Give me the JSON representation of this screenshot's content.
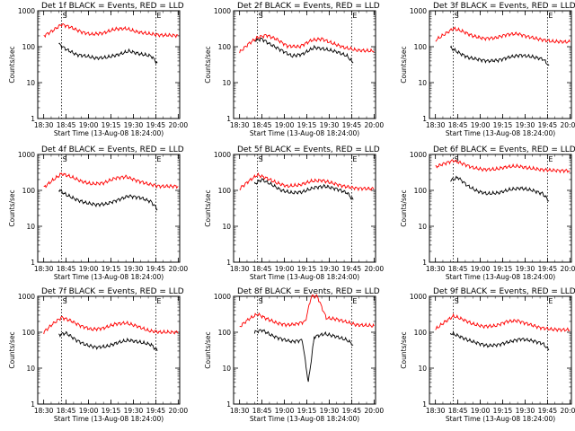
{
  "chart_data": {
    "type": "line",
    "y_scale": "log",
    "ylim": [
      1,
      1000
    ],
    "y_ticks": [
      "1",
      "10",
      "100",
      "1000"
    ],
    "ylabel": "Counts/sec",
    "x_ticks": [
      "18:30",
      "18:45",
      "19:00",
      "19:15",
      "19:30",
      "19:45",
      "20:00"
    ],
    "xlabel": "Start Time (13-Aug-08 18:24:00)",
    "marker_labels": [
      "S",
      "E"
    ],
    "panels": [
      {
        "title": "Det 1f BLACK = Events, RED = LLD",
        "series": [
          {
            "color": "#000000",
            "x": [
              "18:40",
              "18:45",
              "18:52",
              "18:58",
              "19:05",
              "19:12",
              "19:20",
              "19:27",
              "19:35",
              "19:42",
              "19:46"
            ],
            "y": [
              120,
              85,
              60,
              55,
              48,
              50,
              60,
              75,
              62,
              55,
              35
            ]
          },
          {
            "color": "#ff0000",
            "x": [
              "18:30",
              "18:36",
              "18:42",
              "18:48",
              "18:55",
              "19:02",
              "19:10",
              "19:18",
              "19:25",
              "19:32",
              "19:40",
              "19:48",
              "20:00"
            ],
            "y": [
              200,
              280,
              420,
              350,
              260,
              220,
              240,
              310,
              320,
              260,
              230,
              210,
              205
            ]
          }
        ]
      },
      {
        "title": "Det 2f BLACK = Events, RED = LLD",
        "series": [
          {
            "color": "#000000",
            "x": [
              "18:40",
              "18:45",
              "18:50",
              "18:58",
              "19:05",
              "19:12",
              "19:20",
              "19:27",
              "19:35",
              "19:42",
              "19:46"
            ],
            "y": [
              150,
              165,
              120,
              80,
              55,
              62,
              95,
              85,
              72,
              55,
              35
            ]
          },
          {
            "color": "#ff0000",
            "x": [
              "18:30",
              "18:36",
              "18:42",
              "18:48",
              "18:55",
              "19:02",
              "19:10",
              "19:18",
              "19:25",
              "19:32",
              "19:40",
              "19:48",
              "20:00"
            ],
            "y": [
              70,
              120,
              180,
              210,
              160,
              105,
              100,
              150,
              165,
              125,
              95,
              80,
              75
            ]
          }
        ]
      },
      {
        "title": "Det 3f BLACK = Events, RED = LLD",
        "series": [
          {
            "color": "#000000",
            "x": [
              "18:40",
              "18:45",
              "18:52",
              "18:58",
              "19:05",
              "19:12",
              "19:20",
              "19:27",
              "19:35",
              "19:42",
              "19:46"
            ],
            "y": [
              95,
              70,
              50,
              45,
              40,
              42,
              52,
              58,
              52,
              45,
              30
            ]
          },
          {
            "color": "#ff0000",
            "x": [
              "18:30",
              "18:36",
              "18:42",
              "18:48",
              "18:55",
              "19:02",
              "19:10",
              "19:18",
              "19:25",
              "19:32",
              "19:40",
              "19:48",
              "20:00"
            ],
            "y": [
              150,
              220,
              320,
              270,
              200,
              170,
              175,
              220,
              230,
              190,
              160,
              140,
              135
            ]
          }
        ]
      },
      {
        "title": "Det 4f BLACK = Events, RED = LLD",
        "series": [
          {
            "color": "#000000",
            "x": [
              "18:40",
              "18:45",
              "18:52",
              "18:58",
              "19:05",
              "19:12",
              "19:20",
              "19:27",
              "19:35",
              "19:42",
              "19:46"
            ],
            "y": [
              105,
              75,
              55,
              45,
              40,
              42,
              55,
              70,
              62,
              48,
              30
            ]
          },
          {
            "color": "#ff0000",
            "x": [
              "18:30",
              "18:36",
              "18:42",
              "18:48",
              "18:55",
              "19:02",
              "19:10",
              "19:18",
              "19:25",
              "19:32",
              "19:40",
              "19:48",
              "20:00"
            ],
            "y": [
              120,
              190,
              290,
              240,
              180,
              150,
              160,
              220,
              240,
              190,
              150,
              130,
              130
            ]
          }
        ]
      },
      {
        "title": "Det 5f BLACK = Events, RED = LLD",
        "series": [
          {
            "color": "#000000",
            "x": [
              "18:40",
              "18:45",
              "18:52",
              "18:58",
              "19:05",
              "19:12",
              "19:20",
              "19:27",
              "19:35",
              "19:42",
              "19:46"
            ],
            "y": [
              150,
              200,
              140,
              100,
              85,
              90,
              120,
              130,
              110,
              85,
              55
            ]
          },
          {
            "color": "#ff0000",
            "x": [
              "18:30",
              "18:36",
              "18:42",
              "18:48",
              "18:55",
              "19:02",
              "19:10",
              "19:18",
              "19:25",
              "19:32",
              "19:40",
              "19:48",
              "20:00"
            ],
            "y": [
              110,
              180,
              270,
              220,
              160,
              130,
              140,
              180,
              190,
              160,
              130,
              115,
              110
            ]
          }
        ]
      },
      {
        "title": "Det 6f BLACK = Events, RED = LLD",
        "series": [
          {
            "color": "#000000",
            "x": [
              "18:40",
              "18:45",
              "18:52",
              "18:58",
              "19:05",
              "19:12",
              "19:20",
              "19:27",
              "19:35",
              "19:42",
              "19:46"
            ],
            "y": [
              185,
              230,
              130,
              95,
              80,
              85,
              105,
              115,
              100,
              80,
              50
            ]
          },
          {
            "color": "#ff0000",
            "x": [
              "18:30",
              "18:36",
              "18:42",
              "18:48",
              "18:55",
              "19:02",
              "19:10",
              "19:18",
              "19:25",
              "19:32",
              "19:40",
              "19:48",
              "20:00"
            ],
            "y": [
              450,
              560,
              680,
              560,
              430,
              380,
              385,
              450,
              470,
              420,
              380,
              360,
              350
            ]
          }
        ]
      },
      {
        "title": "Det 7f BLACK = Events, RED = LLD",
        "series": [
          {
            "color": "#000000",
            "x": [
              "18:40",
              "18:45",
              "18:52",
              "18:58",
              "19:05",
              "19:12",
              "19:20",
              "19:27",
              "19:35",
              "19:42",
              "19:46"
            ],
            "y": [
              85,
              95,
              60,
              45,
              38,
              40,
              52,
              60,
              52,
              45,
              30
            ]
          },
          {
            "color": "#ff0000",
            "x": [
              "18:30",
              "18:36",
              "18:42",
              "18:48",
              "18:55",
              "19:02",
              "19:10",
              "19:18",
              "19:25",
              "19:32",
              "19:40",
              "19:48",
              "20:00"
            ],
            "y": [
              100,
              170,
              260,
              210,
              150,
              120,
              130,
              170,
              180,
              150,
              110,
              100,
              100
            ]
          }
        ]
      },
      {
        "title": "Det 8f BLACK = Events, RED = LLD",
        "series": [
          {
            "color": "#000000",
            "x": [
              "18:40",
              "18:45",
              "18:52",
              "18:58",
              "19:05",
              "19:12",
              "19:16",
              "19:20",
              "19:27",
              "19:35",
              "19:42",
              "19:46"
            ],
            "y": [
              100,
              115,
              80,
              65,
              55,
              60,
              4,
              75,
              90,
              75,
              60,
              45
            ]
          },
          {
            "color": "#ff0000",
            "x": [
              "18:30",
              "18:36",
              "18:42",
              "18:48",
              "18:55",
              "19:02",
              "19:08",
              "19:14",
              "19:18",
              "19:22",
              "19:28",
              "19:35",
              "19:42",
              "19:48",
              "20:00"
            ],
            "y": [
              140,
              230,
              320,
              240,
              180,
              160,
              170,
              200,
              1000,
              1000,
              250,
              230,
              190,
              160,
              150
            ]
          }
        ]
      },
      {
        "title": "Det 9f BLACK = Events, RED = LLD",
        "series": [
          {
            "color": "#000000",
            "x": [
              "18:40",
              "18:45",
              "18:52",
              "18:58",
              "19:05",
              "19:12",
              "19:20",
              "19:27",
              "19:35",
              "19:42",
              "19:46"
            ],
            "y": [
              95,
              80,
              60,
              50,
              42,
              45,
              55,
              65,
              58,
              48,
              32
            ]
          },
          {
            "color": "#ff0000",
            "x": [
              "18:30",
              "18:36",
              "18:42",
              "18:48",
              "18:55",
              "19:02",
              "19:10",
              "19:18",
              "19:25",
              "19:32",
              "19:40",
              "19:48",
              "20:00"
            ],
            "y": [
              120,
              190,
              280,
              230,
              170,
              145,
              150,
              200,
              210,
              170,
              135,
              120,
              115
            ]
          }
        ]
      }
    ]
  }
}
